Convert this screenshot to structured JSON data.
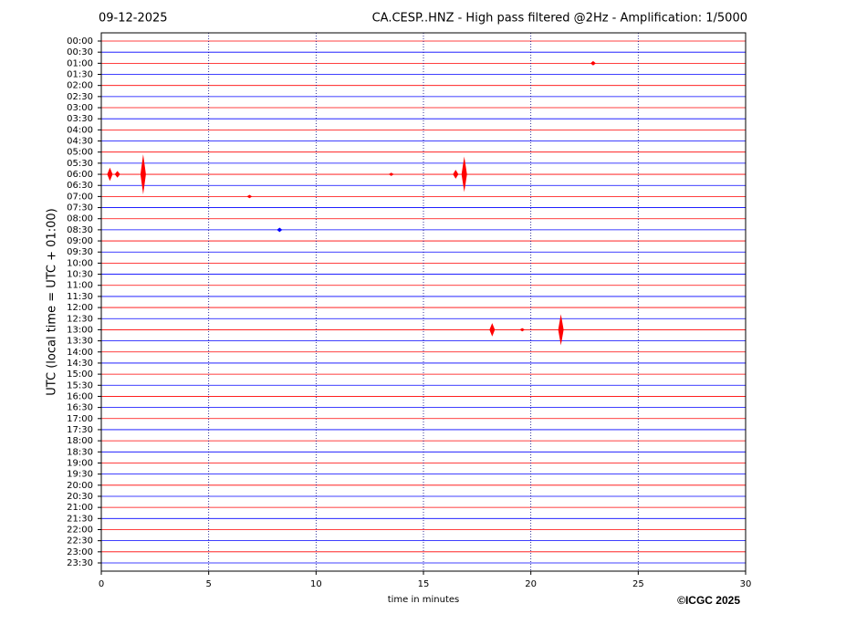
{
  "chart_data": {
    "type": "helicorder",
    "title": "CA.CESP..HNZ - High pass filtered @2Hz - Amplification: 1/5000",
    "date": "09-12-2025",
    "ylabel": "UTC (local time = UTC + 01:00)",
    "xlabel": "time in minutes",
    "copyright": "©ICGC 2025",
    "categories": [
      "00:00",
      "00:30",
      "01:00",
      "01:30",
      "02:00",
      "02:30",
      "03:00",
      "03:30",
      "04:00",
      "04:30",
      "05:00",
      "05:30",
      "06:00",
      "06:30",
      "07:00",
      "07:30",
      "08:00",
      "08:30",
      "09:00",
      "09:30",
      "10:00",
      "10:30",
      "11:00",
      "11:30",
      "12:00",
      "12:30",
      "13:00",
      "13:30",
      "14:00",
      "14:30",
      "15:00",
      "15:30",
      "16:00",
      "16:30",
      "17:00",
      "17:30",
      "18:00",
      "18:30",
      "19:00",
      "19:30",
      "20:00",
      "20:30",
      "21:00",
      "21:30",
      "22:00",
      "22:30",
      "23:00",
      "23:30"
    ],
    "colors": [
      "#ff0000",
      "#0000ff"
    ],
    "xlim": [
      0,
      30
    ],
    "xticks": [
      0,
      5,
      10,
      15,
      20,
      25,
      30
    ],
    "grid": true,
    "events": [
      {
        "row": 2,
        "x": 22.9,
        "amplitude": 0.2
      },
      {
        "row": 12,
        "x": 0.4,
        "amplitude": 0.6
      },
      {
        "row": 12,
        "x": 0.75,
        "amplitude": 0.3
      },
      {
        "row": 12,
        "x": 1.95,
        "amplitude": 1.8
      },
      {
        "row": 12,
        "x": 13.5,
        "amplitude": 0.15
      },
      {
        "row": 12,
        "x": 16.5,
        "amplitude": 0.4
      },
      {
        "row": 12,
        "x": 16.9,
        "amplitude": 1.6
      },
      {
        "row": 14,
        "x": 6.9,
        "amplitude": 0.15
      },
      {
        "row": 17,
        "x": 8.3,
        "amplitude": 0.2
      },
      {
        "row": 26,
        "x": 18.2,
        "amplitude": 0.6
      },
      {
        "row": 26,
        "x": 19.6,
        "amplitude": 0.15
      },
      {
        "row": 26,
        "x": 21.4,
        "amplitude": 1.4
      }
    ]
  }
}
